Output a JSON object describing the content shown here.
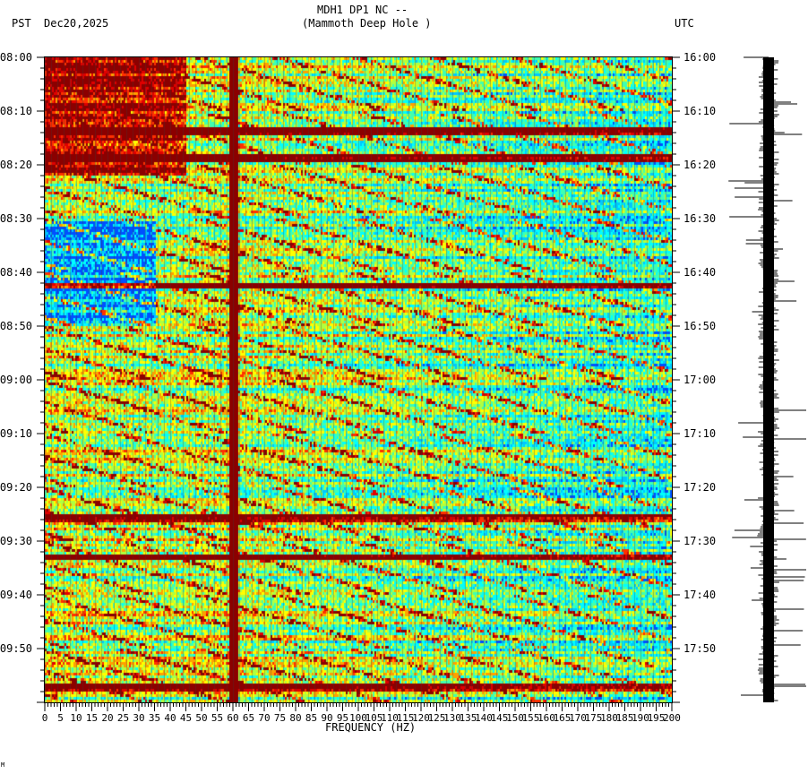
{
  "header": {
    "title": "MDH1 DP1 NC --",
    "subtitle": "(Mammoth Deep Hole )",
    "left_tz": "PST",
    "date": "Dec20,2025",
    "right_tz": "UTC"
  },
  "chart_data": {
    "type": "heatmap",
    "title": "MDH1 DP1 NC -- (Mammoth Deep Hole )",
    "xlabel": "FREQUENCY (HZ)",
    "xlim": [
      0,
      200
    ],
    "x_ticks": [
      "0",
      "5",
      "10",
      "15",
      "20",
      "25",
      "30",
      "35",
      "40",
      "45",
      "50",
      "55",
      "60",
      "65",
      "70",
      "75",
      "80",
      "85",
      "90",
      "95",
      "100",
      "105",
      "110",
      "115",
      "120",
      "125",
      "130",
      "135",
      "140",
      "145",
      "150",
      "155",
      "160",
      "165",
      "170",
      "175",
      "180",
      "185",
      "190",
      "195",
      "200"
    ],
    "y_ticks_left": [
      "08:00",
      "08:10",
      "08:20",
      "08:30",
      "08:40",
      "08:50",
      "09:00",
      "09:10",
      "09:20",
      "09:30",
      "09:40",
      "09:50"
    ],
    "y_ticks_right": [
      "16:00",
      "16:10",
      "16:20",
      "16:30",
      "16:40",
      "16:50",
      "17:00",
      "17:10",
      "17:20",
      "17:30",
      "17:40",
      "17:50"
    ],
    "time_range_minutes": [
      0,
      120
    ],
    "colorscale": [
      "#0050ff",
      "#00c8ff",
      "#00ffff",
      "#40ffb0",
      "#b0ff40",
      "#ffff00",
      "#ffa000",
      "#ff3000",
      "#e00000",
      "#8b0000"
    ],
    "persistent_line_hz": 60,
    "strong_broadband_minutes": [
      13.5,
      18.5,
      42.3,
      85.5,
      92.7,
      117
    ]
  },
  "footer": {
    "mark": "M"
  }
}
